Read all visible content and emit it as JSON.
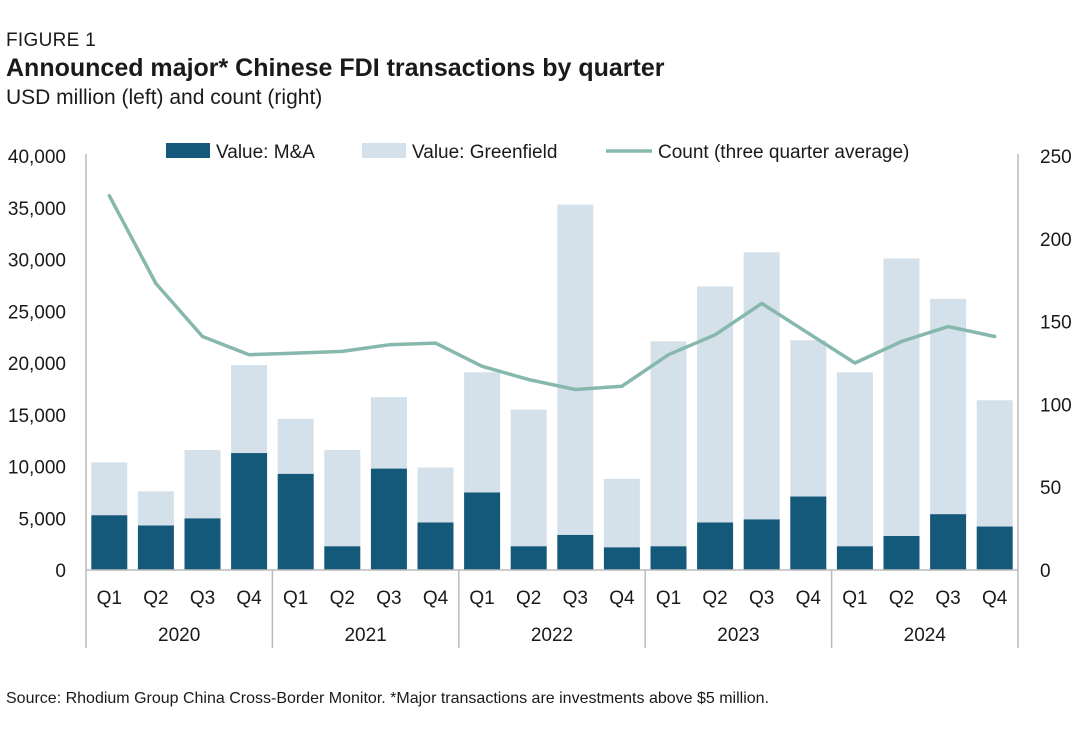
{
  "figure_label": "FIGURE 1",
  "title": "Announced major* Chinese FDI transactions by quarter",
  "subtitle": "USD million (left) and count (right)",
  "source": "Source: Rhodium Group China Cross-Border Monitor. *Major transactions are investments above $5 million.",
  "colors": {
    "ma": "#14587a",
    "greenfield": "#d4e1ea",
    "count": "#86b8ad",
    "axis": "#bbbbbb"
  },
  "chart_data": {
    "type": "bar",
    "stacked": true,
    "title": "Announced major* Chinese FDI transactions by quarter",
    "ylabel": "USD million",
    "y2label": "count",
    "ylim": [
      0,
      40000
    ],
    "y2lim": [
      0,
      250
    ],
    "yticks": [
      "40,000",
      "35,000",
      "30,000",
      "25,000",
      "20,000",
      "15,000",
      "10,000",
      "5,000",
      "0"
    ],
    "y2ticks": [
      "250",
      "200",
      "150",
      "100",
      "50",
      "0"
    ],
    "categories": [
      "Q1",
      "Q2",
      "Q3",
      "Q4",
      "Q1",
      "Q2",
      "Q3",
      "Q4",
      "Q1",
      "Q2",
      "Q3",
      "Q4",
      "Q1",
      "Q2",
      "Q3",
      "Q4",
      "Q1",
      "Q2",
      "Q3",
      "Q4"
    ],
    "groups": [
      "2020",
      "2021",
      "2022",
      "2023",
      "2024"
    ],
    "legend": [
      "Value: M&A",
      "Value: Greenfield",
      "Count (three quarter average)"
    ],
    "series": [
      {
        "name": "Value: M&A",
        "axis": "left",
        "values": [
          5300,
          4300,
          5000,
          11300,
          9300,
          2300,
          9800,
          4600,
          7500,
          2300,
          3400,
          2200,
          2300,
          4600,
          4900,
          7100,
          2300,
          3300,
          5400,
          4200
        ]
      },
      {
        "name": "Value: Greenfield",
        "axis": "left",
        "values": [
          5100,
          3300,
          6600,
          8500,
          5300,
          9300,
          6900,
          5300,
          11600,
          13200,
          31900,
          6600,
          19800,
          22800,
          25800,
          15100,
          16800,
          26800,
          20800,
          12200
        ]
      },
      {
        "name": "Count (three quarter average)",
        "axis": "right",
        "type": "line",
        "values": [
          226,
          173,
          141,
          130,
          131,
          132,
          136,
          137,
          123,
          115,
          109,
          111,
          130,
          142,
          161,
          143,
          125,
          138,
          147,
          141
        ]
      }
    ]
  }
}
